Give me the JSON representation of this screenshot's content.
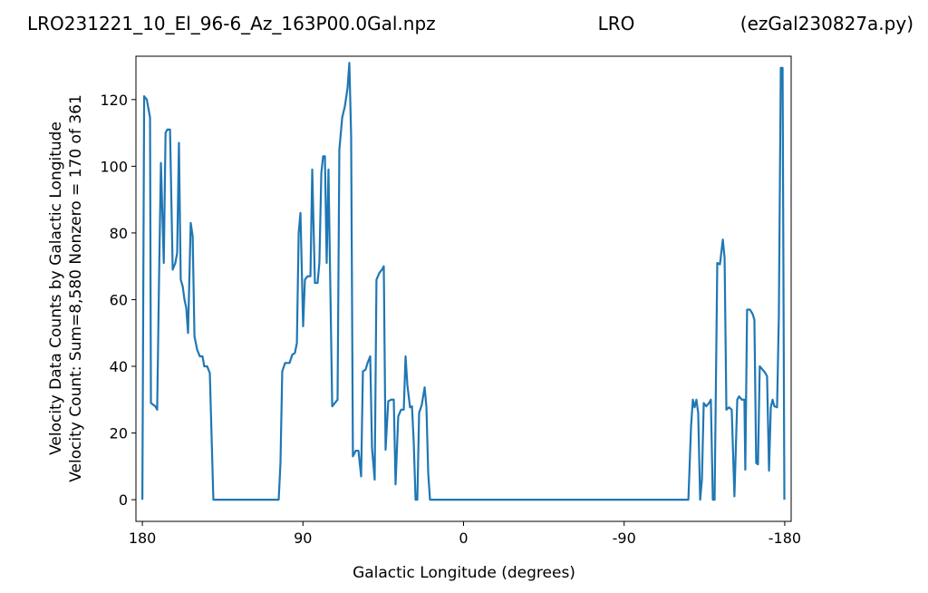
{
  "chart_data": {
    "type": "line",
    "title": "LRO231221_10_El_96-6_Az_163P00.0Gal.npz",
    "title_center": "LRO",
    "title_right": "(ezGal230827a.py)",
    "x_label": "Galactic Longitude (degrees)",
    "y_label": [
      "Velocity Data Counts by Galactic Longitude",
      "Velocity Count: Sum=8,580 Nonzero = 170 of 361"
    ],
    "xlim": [
      183.6,
      -183.6
    ],
    "ylim": [
      -6.5,
      133
    ],
    "xticks": [
      180,
      90,
      0,
      -90,
      -180
    ],
    "yticks": [
      0,
      20,
      40,
      60,
      80,
      100,
      120
    ],
    "series": [
      {
        "color": "#1f77b4",
        "x": [
          180,
          179,
          177.5,
          175.7,
          175.2,
          172.7,
          171.7,
          170.6,
          169.6,
          168,
          167,
          166,
          164.5,
          163,
          161.5,
          160.5,
          159.5,
          158.5,
          157.4,
          156.4,
          155.4,
          154.4,
          152.9,
          151.8,
          150.8,
          149.3,
          147.8,
          146.3,
          145.3,
          143.7,
          142.2,
          140.2,
          103.6,
          102.6,
          101.6,
          100,
          97.5,
          96,
          94.5,
          93.4,
          92.4,
          91.4,
          89.9,
          88.9,
          87.4,
          85.8,
          84.8,
          83.3,
          81.8,
          80.8,
          79.7,
          78.7,
          77.7,
          76.7,
          75.7,
          73.6,
          72.1,
          70.6,
          69.6,
          68,
          66.5,
          65,
          64,
          63,
          62,
          60.4,
          58.9,
          57.4,
          56.4,
          54.9,
          53.8,
          52.3,
          51.3,
          49.8,
          48.8,
          47.2,
          45.7,
          44.7,
          43.7,
          42.2,
          40.6,
          39.1,
          38.1,
          36.6,
          35,
          33.5,
          32.5,
          31.5,
          30,
          28.9,
          27.9,
          26.9,
          25.9,
          24.9,
          23.4,
          21.8,
          20.8,
          19.8,
          18.8,
          -126,
          -127.5,
          -128.5,
          -129.5,
          -130.5,
          -131.5,
          -132.6,
          -133.6,
          -134.6,
          -136,
          -137.6,
          -138.6,
          -139.7,
          -140.7,
          -142.2,
          -143.7,
          -145.3,
          -146.3,
          -147.3,
          -148.8,
          -150.3,
          -151.8,
          -153.4,
          -154.4,
          -155.9,
          -157.4,
          -157.9,
          -158.9,
          -160.5,
          -162,
          -163,
          -164,
          -165,
          -166,
          -167.6,
          -169.1,
          -170.1,
          -171.2,
          -172.2,
          -173.2,
          -174.2,
          -175.7,
          -176.7,
          -177.8,
          -178.8,
          -179.8
        ],
        "values": [
          0,
          121,
          120,
          114.6,
          29,
          28,
          27,
          68,
          101,
          71,
          110,
          111,
          111,
          69,
          71,
          74,
          107,
          66,
          64,
          60,
          57.5,
          50,
          83,
          79,
          49,
          45,
          43,
          43,
          40,
          40,
          38,
          0,
          0,
          11,
          38.5,
          41,
          41,
          43.5,
          44,
          47,
          80,
          86,
          52,
          66,
          67,
          67,
          99,
          65,
          65,
          71,
          98,
          103,
          103,
          71,
          99,
          28,
          29,
          30,
          105,
          114.6,
          118,
          123.5,
          131,
          109,
          13,
          14.7,
          14.7,
          7,
          38.5,
          39,
          41,
          43,
          15.5,
          6,
          66,
          68,
          69,
          70,
          15,
          29.5,
          30,
          30,
          4.6,
          25,
          27,
          27,
          43,
          34.5,
          27.7,
          28,
          17,
          0,
          0,
          26,
          28.5,
          33.7,
          27.7,
          8,
          0,
          0,
          22,
          30,
          27.7,
          30,
          26,
          0,
          6,
          29,
          28,
          29,
          30,
          0,
          0,
          71,
          70.6,
          78,
          72.5,
          27,
          27.7,
          27,
          1,
          30,
          31,
          30,
          30,
          9,
          57,
          57,
          55.7,
          54,
          11,
          10.6,
          40,
          39,
          38,
          37,
          8.7,
          27.7,
          30,
          28,
          27.7,
          55,
          129.5,
          129.5,
          0
        ]
      }
    ]
  }
}
